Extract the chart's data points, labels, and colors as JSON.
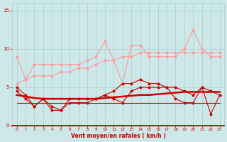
{
  "x": [
    0,
    1,
    2,
    3,
    4,
    5,
    6,
    7,
    8,
    9,
    10,
    11,
    12,
    13,
    14,
    15,
    16,
    17,
    18,
    19,
    20,
    21,
    22,
    23
  ],
  "line_rafales_top": [
    9.0,
    6.0,
    8.0,
    8.0,
    8.0,
    8.0,
    8.0,
    8.0,
    8.5,
    9.0,
    11.0,
    8.5,
    5.5,
    10.5,
    10.5,
    9.0,
    9.0,
    9.0,
    9.0,
    10.0,
    12.5,
    10.0,
    9.0,
    9.0
  ],
  "line_upper_trend": [
    5.5,
    6.0,
    6.5,
    6.5,
    6.5,
    7.0,
    7.0,
    7.5,
    7.5,
    8.0,
    8.5,
    8.5,
    9.0,
    9.0,
    9.5,
    9.5,
    9.5,
    9.5,
    9.5,
    9.5,
    9.5,
    9.5,
    9.5,
    9.5
  ],
  "line_zigzag": [
    5.0,
    4.0,
    2.5,
    3.5,
    2.5,
    2.0,
    3.5,
    3.5,
    3.5,
    3.5,
    4.0,
    4.5,
    5.5,
    5.5,
    6.0,
    5.5,
    5.5,
    5.0,
    5.0,
    4.5,
    4.0,
    5.0,
    4.5,
    4.0
  ],
  "line_mean_dots": [
    4.5,
    3.5,
    2.5,
    3.5,
    2.0,
    2.0,
    3.0,
    3.0,
    3.0,
    3.5,
    4.0,
    3.5,
    3.0,
    4.5,
    5.0,
    5.0,
    5.0,
    5.0,
    3.5,
    3.0,
    3.0,
    5.0,
    1.5,
    4.0
  ],
  "line_flat_upper": [
    4.0,
    3.8,
    3.6,
    3.5,
    3.5,
    3.5,
    3.5,
    3.5,
    3.5,
    3.5,
    3.6,
    3.7,
    3.8,
    3.9,
    4.0,
    4.0,
    4.1,
    4.2,
    4.3,
    4.4,
    4.4,
    4.4,
    4.4,
    4.4
  ],
  "line_flat_lower": [
    3.0,
    3.0,
    3.0,
    3.0,
    3.0,
    3.0,
    3.0,
    3.0,
    3.0,
    3.0,
    3.0,
    3.0,
    3.0,
    3.0,
    3.0,
    3.0,
    3.0,
    3.0,
    3.0,
    3.0,
    3.0,
    3.0,
    3.0,
    3.0
  ],
  "bg_color": "#cce8e8",
  "grid_color": "#aacccc",
  "dark_red": "#cc0000",
  "light_pink": "#ff9999",
  "xlabel": "Vent moyen/en rafales ( km/h )",
  "ylim": [
    0,
    16
  ],
  "xlim": [
    -0.5,
    23.5
  ],
  "yticks": [
    0,
    5,
    10,
    15
  ],
  "xticks": [
    0,
    1,
    2,
    3,
    4,
    5,
    6,
    7,
    8,
    9,
    10,
    11,
    12,
    13,
    14,
    15,
    16,
    17,
    18,
    19,
    20,
    21,
    22,
    23
  ]
}
